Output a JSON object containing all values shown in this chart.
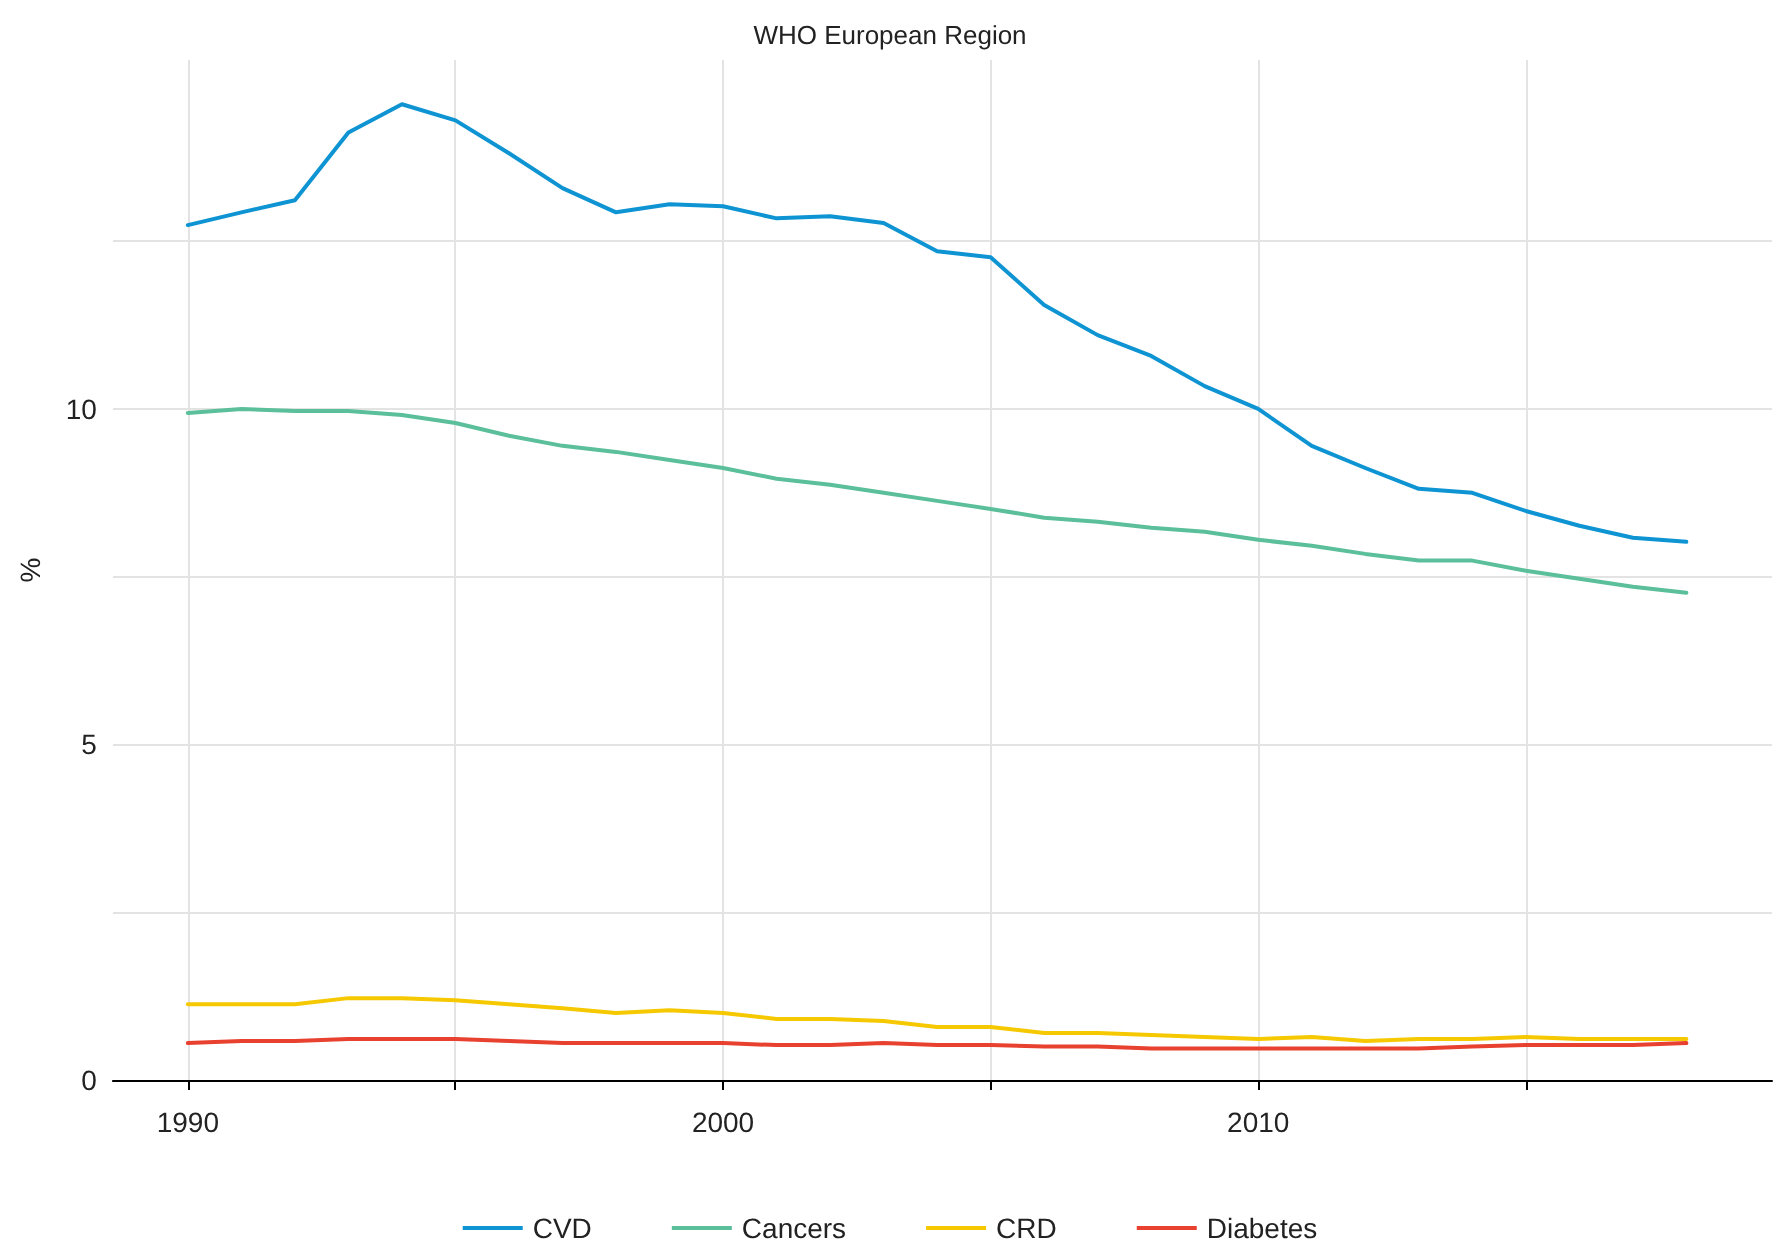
{
  "chart_data": {
    "type": "line",
    "title": "WHO European Region",
    "ylabel": "%",
    "x": [
      1990,
      1991,
      1992,
      1993,
      1994,
      1995,
      1996,
      1997,
      1998,
      1999,
      2000,
      2001,
      2002,
      2003,
      2004,
      2005,
      2006,
      2007,
      2008,
      2009,
      2010,
      2011,
      2012,
      2013,
      2014,
      2015,
      2016,
      2017,
      2018
    ],
    "series": [
      {
        "name": "CVD",
        "color": "#0e94d2",
        "values": [
          12.74,
          12.93,
          13.11,
          14.12,
          14.54,
          14.3,
          13.81,
          13.29,
          12.93,
          13.05,
          13.02,
          12.84,
          12.87,
          12.77,
          12.35,
          12.26,
          11.55,
          11.1,
          10.79,
          10.34,
          10.0,
          9.45,
          9.12,
          8.81,
          8.75,
          8.48,
          8.26,
          8.08,
          8.02
        ]
      },
      {
        "name": "Cancers",
        "color": "#5bbf9b",
        "values": [
          9.94,
          10.0,
          9.97,
          9.97,
          9.91,
          9.79,
          9.6,
          9.45,
          9.36,
          9.24,
          9.12,
          8.96,
          8.87,
          8.75,
          8.63,
          8.51,
          8.38,
          8.32,
          8.23,
          8.17,
          8.05,
          7.96,
          7.84,
          7.74,
          7.74,
          7.59,
          7.47,
          7.35,
          7.26
        ]
      },
      {
        "name": "CRD",
        "color": "#f5c800",
        "values": [
          1.13,
          1.13,
          1.13,
          1.22,
          1.22,
          1.19,
          1.13,
          1.07,
          1.0,
          1.04,
          1.0,
          0.91,
          0.91,
          0.88,
          0.79,
          0.79,
          0.7,
          0.7,
          0.67,
          0.64,
          0.61,
          0.64,
          0.58,
          0.61,
          0.61,
          0.64,
          0.61,
          0.61,
          0.61
        ]
      },
      {
        "name": "Diabetes",
        "color": "#e8412f",
        "values": [
          0.55,
          0.58,
          0.58,
          0.61,
          0.61,
          0.61,
          0.58,
          0.55,
          0.55,
          0.55,
          0.55,
          0.52,
          0.52,
          0.55,
          0.52,
          0.52,
          0.5,
          0.5,
          0.47,
          0.47,
          0.47,
          0.47,
          0.47,
          0.47,
          0.5,
          0.52,
          0.52,
          0.52,
          0.55
        ]
      }
    ],
    "xlim": [
      1988.6,
      2019.6
    ],
    "xticks": [
      1990,
      {
        "value": 1995,
        "label": null
      },
      2000,
      {
        "value": 2005,
        "label": null
      },
      2010,
      {
        "value": 2015,
        "label": null
      }
    ],
    "ylim": [
      0,
      15.2
    ],
    "yticks": [
      0,
      {
        "value": 2.5,
        "label": null
      },
      5,
      {
        "value": 7.5,
        "label": null
      },
      10,
      {
        "value": 12.5,
        "label": null
      }
    ],
    "grid": true,
    "legend": "bottom",
    "marker": "none",
    "line_style": "solid"
  }
}
